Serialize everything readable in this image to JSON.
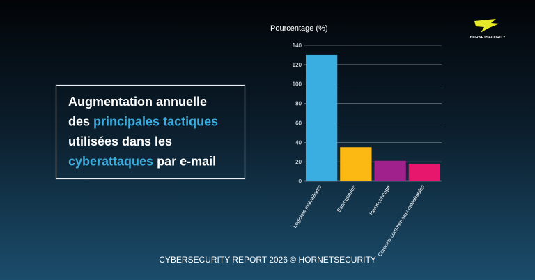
{
  "logo": "HORNETSECURITY",
  "headline": {
    "lines": [
      [
        {
          "text": "Augmentation annuelle"
        }
      ],
      [
        {
          "text": "des "
        },
        {
          "text": "principales tactiques",
          "highlight": true
        }
      ],
      [
        {
          "text": "utilisées dans les"
        }
      ],
      [
        {
          "text": "cyberattaques",
          "highlight": true
        },
        {
          "text": " par e-mail"
        }
      ]
    ],
    "highlight_color": "#3aaee0"
  },
  "chart_data": {
    "type": "bar",
    "y_label": "Pourcentage (%)",
    "categories": [
      "Logiciels malveillants",
      "Escroqueries",
      "Hameçonnage",
      "Courriels commerciaux indésirables"
    ],
    "values": [
      130,
      35,
      21,
      18
    ],
    "colors": [
      "#3aaee0",
      "#fdb913",
      "#a0208c",
      "#e6176c"
    ],
    "ylim": [
      0,
      140
    ],
    "yticks": [
      0,
      20,
      40,
      60,
      80,
      100,
      120,
      140
    ],
    "grid": true
  },
  "footer": "CYBERSECURITY REPORT 2026 © HORNETSECURITY"
}
